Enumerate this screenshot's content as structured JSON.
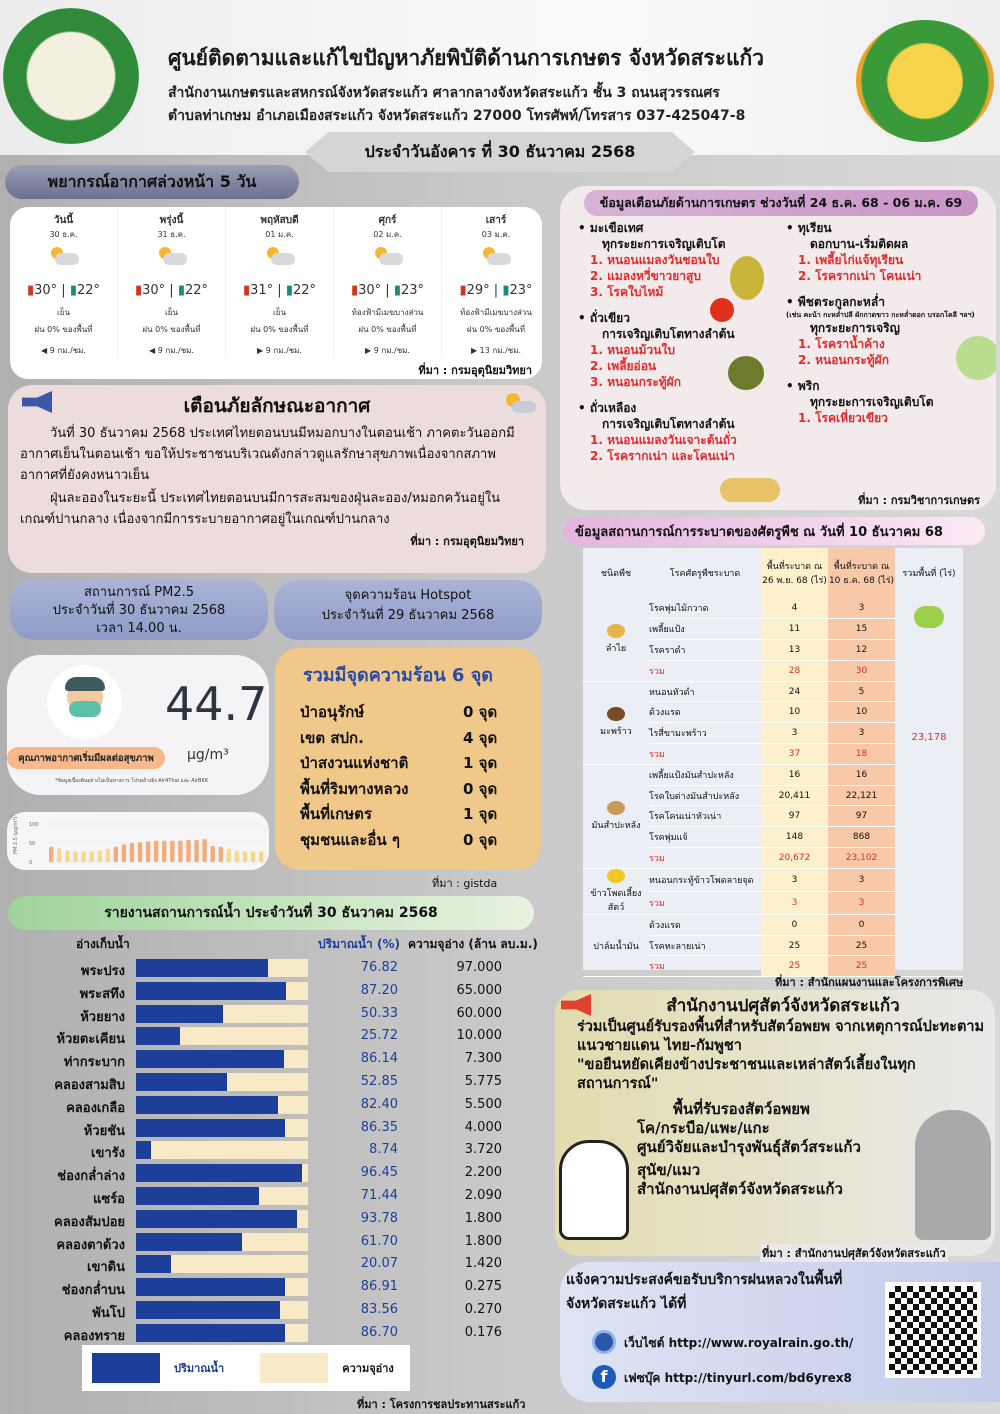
{
  "header": {
    "title": "ศูนย์ติดตามและแก้ไขปัญหาภัยพิบัติด้านการเกษตร จังหวัดสระแก้ว",
    "line1": "สำนักงานเกษตรและสหกรณ์จังหวัดสระแก้ว ศาลากลางจังหวัดสระแก้ว ชั้น 3 ถนนสุวรรณศร",
    "line2": "ตำบลท่าเกษม อำเภอเมืองสระแก้ว จังหวัดสระแก้ว 27000 โทรศัพท์/โทรสาร 037-425047-8",
    "date": "ประจำวันอังคาร ที่ 30 ธันวาคม 2568",
    "logo_left": "MINISTRY OF AGRICULTURE AND COOPERATIVES"
  },
  "forecast": {
    "title": "พยากรณ์อากาศล่วงหน้า 5 วัน",
    "source": "ที่มา : กรมอุตุนิยมวิทยา",
    "days": [
      {
        "name": "วันนี้",
        "date": "30 ธ.ค.",
        "high": "30°",
        "low": "22°",
        "cond": "เย็น",
        "rain": "ฝน 0% ของพื้นที่",
        "wind": "◀ 9 กม./ชม."
      },
      {
        "name": "พรุ่งนี้",
        "date": "31 ธ.ค.",
        "high": "30°",
        "low": "22°",
        "cond": "เย็น",
        "rain": "ฝน 0% ของพื้นที่",
        "wind": "◀ 9 กม./ชม."
      },
      {
        "name": "พฤหัสบดี",
        "date": "01 ม.ค.",
        "high": "31°",
        "low": "22°",
        "cond": "เย็น",
        "rain": "ฝน 0% ของพื้นที่",
        "wind": "▶ 9 กม./ชม."
      },
      {
        "name": "ศุกร์",
        "date": "02 ม.ค.",
        "high": "30°",
        "low": "23°",
        "cond": "ท้องฟ้ามีเมฆบางส่วน",
        "rain": "ฝน 0% ของพื้นที่",
        "wind": "▶ 9 กม./ชม."
      },
      {
        "name": "เสาร์",
        "date": "03 ม.ค.",
        "high": "29°",
        "low": "23°",
        "cond": "ท้องฟ้ามีเมฆบางส่วน",
        "rain": "ฝน 0% ของพื้นที่",
        "wind": "▶ 13 กม./ชม."
      }
    ]
  },
  "warning": {
    "title": "เตือนภัยลักษณะอากาศ",
    "p1": "วันที่ 30 ธันวาคม 2568 ประเทศไทยตอนบนมีหมอกบางในตอนเช้า ภาคตะวันออกมีอากาศเย็นในตอนเช้า ขอให้ประชาชนบริเวณดังกล่าวดูแลรักษาสุขภาพเนื่องจากสภาพอากาศที่ยังคงหนาวเย็น",
    "p2": "ฝุ่นละอองในระยะนี้ ประเทศไทยตอนบนมีการสะสมของฝุ่นละออง/หมอกควันอยู่ในเกณฑ์ปานกลาง เนื่องจากมีการระบายอากาศอยู่ในเกณฑ์ปานกลาง",
    "source": "ที่มา : กรมอุตุนิยมวิทยา"
  },
  "pm25": {
    "title": "สถานการณ์ PM2.5",
    "date": "ประจำวันที่ 30 ธันวาคม 2568",
    "time": "เวลา 14.00 น.",
    "value": "44.7",
    "unit": "µg/m³",
    "level": "คุณภาพอากาศเริ่มมีผลต่อสุขภาพ",
    "note": "*ข้อมูลเบื้องต้นอย่างไม่เป็นทางการ โปรดอ้างอิง Air4Thai และ AirBKK",
    "level_color": "#f7b98c",
    "chart": {
      "ylabel": "PM 2.5 (µg/m³)",
      "ticks": [
        "100",
        "50",
        "0"
      ],
      "values": [
        40,
        36,
        30,
        28,
        28,
        28,
        30,
        35,
        40,
        46,
        50,
        52,
        54,
        56,
        56,
        56,
        56,
        58,
        58,
        60,
        42,
        40,
        35,
        30,
        28,
        28,
        28
      ]
    }
  },
  "hotspot": {
    "title": "จุดความร้อน Hotspot",
    "date": "ประจำวันที่ 29 ธันวาคม 2568",
    "total": "รวมมีจุดความร้อน 6 จุด",
    "items": [
      {
        "name": "ป่าอนุรักษ์",
        "count": "0 จุด"
      },
      {
        "name": "เขต สปก.",
        "count": "4 จุด"
      },
      {
        "name": "ป่าสงวนแห่งชาติ",
        "count": "1 จุด"
      },
      {
        "name": "พื้นที่ริมทางหลวง",
        "count": "0 จุด"
      },
      {
        "name": "พื้นที่เกษตร",
        "count": "1 จุด"
      },
      {
        "name": "ชุมชนและอื่น ๆ",
        "count": "0 จุด"
      }
    ],
    "source": "ที่มา : gistda"
  },
  "alert": {
    "title": "ข้อมูลเตือนภัยด้านการเกษตร ช่วงวันที่ 24 ธ.ค. 68 - 06 ม.ค. 69",
    "source": "ที่มา : กรมวิชาการเกษตร",
    "crops": [
      {
        "name": "มะเขือเทศ",
        "stage": "ทุกระยะการเจริญเติบโต",
        "items": [
          "1. หนอนแมลงวันชอนใบ",
          "2. แมลงหวี่ขาวยาสูบ",
          "3. โรคใบไหม้"
        ]
      },
      {
        "name": "ถั่วเขียว",
        "stage": "การเจริญเติบโตทางลำต้น",
        "items": [
          "1. หนอนม้วนใบ",
          "2. เพลี้ยอ่อน",
          "3. หนอนกระทู้ผัก"
        ]
      },
      {
        "name": "ถั่วเหลือง",
        "stage": "การเจริญเติบโตทางลำต้น",
        "items": [
          "1. หนอนแมลงวันเจาะต้นถั่ว",
          "2. โรครากเน่า และโคนเน่า"
        ]
      },
      {
        "name": "ทุเรียน",
        "stage": "ดอกบาน-เริ่มติดผล",
        "items": [
          "1. เพลี้ยไก่แจ้ทุเรียน",
          "2. โรครากเน่า โคนเน่า"
        ]
      },
      {
        "name": "พืชตระกูลกะหล่ำ",
        "note": "(เช่น คะน้า กะหล่ำปลี ผักกาดขาว กะหล่ำดอก บรอกโคลี ฯลฯ)",
        "stage": "ทุกระยะการเจริญ",
        "items": [
          "1. โรคราน้ำค้าง",
          "2. หนอนกระทู้ผัก"
        ]
      },
      {
        "name": "พริก",
        "stage": "ทุกระยะการเจริญเติบโต",
        "items": [
          "1. โรคเหี่ยวเขียว"
        ]
      }
    ]
  },
  "pest": {
    "title": "ข้อมูลสถานการณ์การระบาดของศัตรูพืช ณ วันที่ 10 ธันวาคม 68",
    "headers": [
      "ชนิดพืช",
      "โรคศัตรูพืชระบาด",
      "พื้นที่ระบาด ณ 26 พ.ย. 68 (ไร่)",
      "พื้นที่ระบาด ณ 10 ธ.ค. 68 (ไร่)",
      "รวมพื้นที่ (ไร่)"
    ],
    "total": "23,178",
    "source": "ที่มา : สำนักแผนงานและโครงการพิเศษ",
    "groups": [
      {
        "crop": "ลำไย",
        "rows": [
          [
            "โรคพุ่มไม้กวาด",
            "4",
            "3"
          ],
          [
            "เพลี้ยแป้ง",
            "11",
            "15"
          ],
          [
            "โรคราดำ",
            "13",
            "12"
          ],
          [
            "รวม",
            "28",
            "30"
          ]
        ]
      },
      {
        "crop": "มะพร้าว",
        "rows": [
          [
            "หนอนหัวดำ",
            "24",
            "5"
          ],
          [
            "ด้วงแรด",
            "10",
            "10"
          ],
          [
            "ไรสี่ขามะพร้าว",
            "3",
            "3"
          ],
          [
            "รวม",
            "37",
            "18"
          ]
        ]
      },
      {
        "crop": "มันสำปะหลัง",
        "rows": [
          [
            "เพลี้ยแป้งมันสำปะหลัง",
            "16",
            "16"
          ],
          [
            "โรคใบด่างมันสำปะหลัง",
            "20,411",
            "22,121"
          ],
          [
            "โรคโคนเน่าหัวเน่า",
            "97",
            "97"
          ],
          [
            "โรคพุ่มแจ้",
            "148",
            "868"
          ],
          [
            "รวม",
            "20,672",
            "23,102"
          ]
        ]
      },
      {
        "crop": "ข้าวโพดเลี้ยงสัตว์",
        "rows": [
          [
            "หนอนกระทู้ข้าวโพดลายจุด",
            "3",
            "3"
          ],
          [
            "รวม",
            "3",
            "3"
          ]
        ]
      },
      {
        "crop": "ปาล์มน้ำมัน",
        "rows": [
          [
            "ด้วงแรด",
            "0",
            "0"
          ],
          [
            "โรคทะลายเน่า",
            "25",
            "25"
          ],
          [
            "รวม",
            "25",
            "25"
          ]
        ]
      }
    ]
  },
  "water": {
    "title": "รายงานสถานการณ์น้ำ ประจำวันที่ 30 ธันวาคม 2568",
    "col_name": "อ่างเก็บน้ำ",
    "col_pct": "ปริมาณน้ำ (%)",
    "col_cap": "ความจุอ่าง (ล้าน ลบ.ม.)",
    "legend_fill": "ปริมาณน้ำ",
    "legend_cap": "ความจุอ่าง",
    "source": "ที่มา : โครงการชลประทานสระแก้ว",
    "rows": [
      {
        "name": "พระปรง",
        "pct": "76.82",
        "cap": "97.000"
      },
      {
        "name": "พระสทึง",
        "pct": "87.20",
        "cap": "65.000"
      },
      {
        "name": "ห้วยยาง",
        "pct": "50.33",
        "cap": "60.000"
      },
      {
        "name": "ห้วยตะเคียน",
        "pct": "25.72",
        "cap": "10.000"
      },
      {
        "name": "ท่ากระบาก",
        "pct": "86.14",
        "cap": "7.300"
      },
      {
        "name": "คลองสามสิบ",
        "pct": "52.85",
        "cap": "5.775"
      },
      {
        "name": "คลองเกลือ",
        "pct": "82.40",
        "cap": "5.500"
      },
      {
        "name": "ห้วยชัน",
        "pct": "86.35",
        "cap": "4.000"
      },
      {
        "name": "เขารัง",
        "pct": "8.74",
        "cap": "3.720"
      },
      {
        "name": "ช่องกล่ำล่าง",
        "pct": "96.45",
        "cap": "2.200"
      },
      {
        "name": "แซร์อ",
        "pct": "71.44",
        "cap": "2.090"
      },
      {
        "name": "คลองสัมปอย",
        "pct": "93.78",
        "cap": "1.800"
      },
      {
        "name": "คลองตาด้วง",
        "pct": "61.70",
        "cap": "1.800"
      },
      {
        "name": "เขาดิน",
        "pct": "20.07",
        "cap": "1.420"
      },
      {
        "name": "ช่องกล่ำบน",
        "pct": "86.91",
        "cap": "0.275"
      },
      {
        "name": "พันโป",
        "pct": "83.56",
        "cap": "0.270"
      },
      {
        "name": "คลองทราย",
        "pct": "86.70",
        "cap": "0.176"
      }
    ]
  },
  "livestock": {
    "title": "สำนักงานปศุสัตว์จังหวัดสระแก้ว",
    "p1": "ร่วมเป็นศูนย์รับรองพื้นที่สำหรับสัตว์อพยพ จากเหตุการณ์ปะทะตามแนวชายแดน ไทย-กัมพูชา",
    "quote": "\"ขอยืนหยัดเคียงข้างประชาชนและเหล่าสัตว์เลี้ยงในทุกสถานการณ์\"",
    "sub": "พื้นที่รับรองสัตว์อพยพ",
    "a1": "โค/กระบือ/แพะ/แกะ",
    "a1loc": "ศูนย์วิจัยและบำรุงพันธุ์สัตว์สระแก้ว",
    "a2": "สุนัข/แมว",
    "a2loc": "สำนักงานปศุสัตว์จังหวัดสระแก้ว",
    "source": "ที่มา : สำนักงานปศุสัตว์จังหวัดสระแก้ว"
  },
  "rain": {
    "title": "แจ้งความประสงค์ขอรับบริการฝนหลวงในพื้นที่จังหวัดสระแก้ว ได้ที่",
    "web": "เว็บไซต์ http://www.royalrain.go.th/",
    "fb": "เฟซบุ๊ค http://tinyurl.com/bd6yrex8"
  }
}
